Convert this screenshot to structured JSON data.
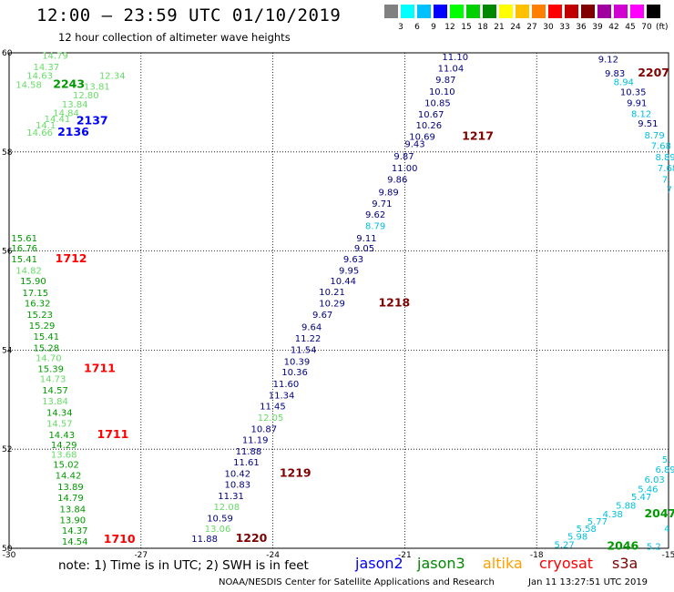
{
  "header": {
    "title": "12:00 — 23:59 UTC 01/10/2019",
    "subtitle": "12 hour collection of altimeter wave heights"
  },
  "legend": {
    "colors": [
      "#808080",
      "#00ffff",
      "#00c0ff",
      "#0000ff",
      "#00ff00",
      "#00d000",
      "#008800",
      "#ffff00",
      "#ffc000",
      "#ff8000",
      "#ff0000",
      "#c00000",
      "#800000",
      "#a000a0",
      "#d000d0",
      "#ff00ff",
      "#000000"
    ],
    "labels": [
      "3",
      "6",
      "9",
      "12",
      "15",
      "18",
      "21",
      "24",
      "27",
      "30",
      "33",
      "36",
      "39",
      "42",
      "45",
      "70"
    ],
    "unit": "(ft)"
  },
  "axes": {
    "x_ticks": [
      "-30",
      "-27",
      "-24",
      "-21",
      "-18",
      "-15"
    ],
    "y_ticks": [
      "60",
      "58",
      "56",
      "54",
      "52",
      "50"
    ]
  },
  "notes": {
    "text": "note: 1) Time is in UTC; 2) SWH is in feet",
    "credit": "NOAA/NESDIS Center for Satellite Applications and Research",
    "timestamp": "Jan 11 13:27:51 UTC 2019"
  },
  "satellites": [
    {
      "name": "jason2",
      "color": "#0000ff"
    },
    {
      "name": "jason3",
      "color": "#008800"
    },
    {
      "name": "altika",
      "color": "#ffa000"
    },
    {
      "name": "cryosat",
      "color": "#ff0000"
    },
    {
      "name": "s3a",
      "color": "#800000"
    }
  ],
  "colors": {
    "l": "#66dd66",
    "g": "#009900",
    "b": "#0000ff",
    "c": "#00c0e0",
    "n": "#000080",
    "r": "#ff0000",
    "m": "#800000"
  },
  "labels": [
    {
      "lon": -29.25,
      "lat": 59.95,
      "t": "14.79",
      "c": "l"
    },
    {
      "lon": -29.45,
      "lat": 59.72,
      "t": "14.37",
      "c": "l"
    },
    {
      "lon": -29.6,
      "lat": 59.55,
      "t": "14.63",
      "c": "l"
    },
    {
      "lon": -29.85,
      "lat": 59.37,
      "t": "14.58",
      "c": "l"
    },
    {
      "lon": -29.0,
      "lat": 59.37,
      "t": "2243",
      "c": "g",
      "big": true
    },
    {
      "lon": -27.95,
      "lat": 59.55,
      "t": "12.34",
      "c": "l"
    },
    {
      "lon": -28.3,
      "lat": 59.33,
      "t": "13.81",
      "c": "l"
    },
    {
      "lon": -28.55,
      "lat": 59.15,
      "t": "12.80",
      "c": "l"
    },
    {
      "lon": -28.8,
      "lat": 58.97,
      "t": "13.84",
      "c": "l"
    },
    {
      "lon": -29.0,
      "lat": 58.8,
      "t": "14.84",
      "c": "l"
    },
    {
      "lon": -29.2,
      "lat": 58.68,
      "t": "14.41",
      "c": "l"
    },
    {
      "lon": -28.47,
      "lat": 58.63,
      "t": "2137",
      "c": "b",
      "big": true
    },
    {
      "lon": -29.4,
      "lat": 58.55,
      "t": "14.1",
      "c": "l"
    },
    {
      "lon": -29.6,
      "lat": 58.4,
      "t": "14.66",
      "c": "l"
    },
    {
      "lon": -28.9,
      "lat": 58.4,
      "t": "2136",
      "c": "b",
      "big": true
    },
    {
      "lon": -20.15,
      "lat": 59.93,
      "t": "11.10",
      "c": "n"
    },
    {
      "lon": -20.25,
      "lat": 59.7,
      "t": "11.04",
      "c": "n"
    },
    {
      "lon": -20.3,
      "lat": 59.47,
      "t": "9.87",
      "c": "n"
    },
    {
      "lon": -20.45,
      "lat": 59.23,
      "t": "10.10",
      "c": "n"
    },
    {
      "lon": -20.55,
      "lat": 59.0,
      "t": "10.85",
      "c": "n"
    },
    {
      "lon": -20.7,
      "lat": 58.77,
      "t": "10.67",
      "c": "n"
    },
    {
      "lon": -20.75,
      "lat": 58.55,
      "t": "10.26",
      "c": "n"
    },
    {
      "lon": -20.9,
      "lat": 58.32,
      "t": "10.69",
      "c": "n"
    },
    {
      "lon": -19.7,
      "lat": 58.32,
      "t": "1217",
      "c": "m",
      "big": true
    },
    {
      "lon": -21.0,
      "lat": 58.17,
      "t": "9.43",
      "c": "n"
    },
    {
      "lon": -21.25,
      "lat": 57.92,
      "t": "9.87",
      "c": "n"
    },
    {
      "lon": -21.3,
      "lat": 57.68,
      "t": "11.00",
      "c": "n"
    },
    {
      "lon": -21.4,
      "lat": 57.45,
      "t": "9.86",
      "c": "n"
    },
    {
      "lon": -21.6,
      "lat": 57.2,
      "t": "9.89",
      "c": "n"
    },
    {
      "lon": -21.75,
      "lat": 56.97,
      "t": "9.71",
      "c": "n"
    },
    {
      "lon": -21.9,
      "lat": 56.75,
      "t": "9.62",
      "c": "n"
    },
    {
      "lon": -21.9,
      "lat": 56.52,
      "t": "8.79",
      "c": "c"
    },
    {
      "lon": -22.1,
      "lat": 56.27,
      "t": "9.11",
      "c": "n"
    },
    {
      "lon": -22.15,
      "lat": 56.07,
      "t": "9.05",
      "c": "n"
    },
    {
      "lon": -22.4,
      "lat": 55.85,
      "t": "9.63",
      "c": "n"
    },
    {
      "lon": -22.5,
      "lat": 55.62,
      "t": "9.95",
      "c": "n"
    },
    {
      "lon": -22.7,
      "lat": 55.4,
      "t": "10.44",
      "c": "n"
    },
    {
      "lon": -22.95,
      "lat": 55.18,
      "t": "10.21",
      "c": "n"
    },
    {
      "lon": -22.95,
      "lat": 54.95,
      "t": "10.29",
      "c": "n"
    },
    {
      "lon": -21.6,
      "lat": 54.95,
      "t": "1218",
      "c": "m",
      "big": true
    },
    {
      "lon": -23.1,
      "lat": 54.72,
      "t": "9.67",
      "c": "n"
    },
    {
      "lon": -23.35,
      "lat": 54.48,
      "t": "9.64",
      "c": "n"
    },
    {
      "lon": -23.5,
      "lat": 54.25,
      "t": "11.22",
      "c": "n"
    },
    {
      "lon": -23.6,
      "lat": 54.02,
      "t": "11.54",
      "c": "n"
    },
    {
      "lon": -23.75,
      "lat": 53.78,
      "t": "10.39",
      "c": "n"
    },
    {
      "lon": -23.8,
      "lat": 53.57,
      "t": "10.36",
      "c": "n"
    },
    {
      "lon": -24.0,
      "lat": 53.33,
      "t": "11.60",
      "c": "n"
    },
    {
      "lon": -24.1,
      "lat": 53.1,
      "t": "11.34",
      "c": "n"
    },
    {
      "lon": -24.3,
      "lat": 52.88,
      "t": "11.45",
      "c": "n"
    },
    {
      "lon": -24.35,
      "lat": 52.65,
      "t": "12.05",
      "c": "l"
    },
    {
      "lon": -24.5,
      "lat": 52.42,
      "t": "10.87",
      "c": "n"
    },
    {
      "lon": -24.7,
      "lat": 52.2,
      "t": "11.19",
      "c": "n"
    },
    {
      "lon": -24.85,
      "lat": 51.97,
      "t": "11.88",
      "c": "n"
    },
    {
      "lon": -24.9,
      "lat": 51.75,
      "t": "11.61",
      "c": "n"
    },
    {
      "lon": -25.1,
      "lat": 51.52,
      "t": "10.42",
      "c": "n"
    },
    {
      "lon": -23.85,
      "lat": 51.52,
      "t": "1219",
      "c": "m",
      "big": true
    },
    {
      "lon": -25.1,
      "lat": 51.3,
      "t": "10.83",
      "c": "n"
    },
    {
      "lon": -25.25,
      "lat": 51.07,
      "t": "11.31",
      "c": "n"
    },
    {
      "lon": -25.35,
      "lat": 50.85,
      "t": "12.08",
      "c": "l"
    },
    {
      "lon": -25.5,
      "lat": 50.62,
      "t": "10.59",
      "c": "n"
    },
    {
      "lon": -25.55,
      "lat": 50.4,
      "t": "13.06",
      "c": "l"
    },
    {
      "lon": -25.85,
      "lat": 50.2,
      "t": "11.88",
      "c": "n"
    },
    {
      "lon": -24.85,
      "lat": 50.2,
      "t": "1220",
      "c": "m",
      "big": true
    },
    {
      "lon": -29.95,
      "lat": 56.27,
      "t": "15.61",
      "c": "g"
    },
    {
      "lon": -29.95,
      "lat": 56.07,
      "t": "16.76",
      "c": "g"
    },
    {
      "lon": -29.95,
      "lat": 55.85,
      "t": "15.41",
      "c": "g"
    },
    {
      "lon": -28.95,
      "lat": 55.85,
      "t": "1712",
      "c": "r",
      "big": true
    },
    {
      "lon": -29.85,
      "lat": 55.62,
      "t": "14.82",
      "c": "l"
    },
    {
      "lon": -29.75,
      "lat": 55.4,
      "t": "15.90",
      "c": "g"
    },
    {
      "lon": -29.7,
      "lat": 55.17,
      "t": "17.15",
      "c": "g"
    },
    {
      "lon": -29.65,
      "lat": 54.95,
      "t": "16.32",
      "c": "g"
    },
    {
      "lon": -29.6,
      "lat": 54.72,
      "t": "15.23",
      "c": "g"
    },
    {
      "lon": -29.55,
      "lat": 54.5,
      "t": "15.29",
      "c": "g"
    },
    {
      "lon": -29.45,
      "lat": 54.28,
      "t": "15.41",
      "c": "g"
    },
    {
      "lon": -29.45,
      "lat": 54.05,
      "t": "15.28",
      "c": "g"
    },
    {
      "lon": -29.4,
      "lat": 53.85,
      "t": "14.70",
      "c": "l"
    },
    {
      "lon": -29.35,
      "lat": 53.63,
      "t": "15.39",
      "c": "g"
    },
    {
      "lon": -28.3,
      "lat": 53.63,
      "t": "1711",
      "c": "r",
      "big": true
    },
    {
      "lon": -29.3,
      "lat": 53.43,
      "t": "14.73",
      "c": "l"
    },
    {
      "lon": -29.25,
      "lat": 53.2,
      "t": "14.57",
      "c": "g"
    },
    {
      "lon": -29.25,
      "lat": 52.98,
      "t": "13.84",
      "c": "l"
    },
    {
      "lon": -29.15,
      "lat": 52.75,
      "t": "14.34",
      "c": "g"
    },
    {
      "lon": -29.15,
      "lat": 52.53,
      "t": "14.57",
      "c": "l"
    },
    {
      "lon": -29.1,
      "lat": 52.3,
      "t": "14.43",
      "c": "g"
    },
    {
      "lon": -28.0,
      "lat": 52.3,
      "t": "1711",
      "c": "r",
      "big": true
    },
    {
      "lon": -29.05,
      "lat": 52.1,
      "t": "14.29",
      "c": "g"
    },
    {
      "lon": -29.05,
      "lat": 51.9,
      "t": "13.68",
      "c": "l"
    },
    {
      "lon": -29.0,
      "lat": 51.7,
      "t": "15.02",
      "c": "g"
    },
    {
      "lon": -28.95,
      "lat": 51.48,
      "t": "14.42",
      "c": "g"
    },
    {
      "lon": -28.9,
      "lat": 51.25,
      "t": "13.89",
      "c": "g"
    },
    {
      "lon": -28.9,
      "lat": 51.03,
      "t": "14.79",
      "c": "g"
    },
    {
      "lon": -28.85,
      "lat": 50.8,
      "t": "13.84",
      "c": "g"
    },
    {
      "lon": -28.85,
      "lat": 50.58,
      "t": "13.90",
      "c": "g"
    },
    {
      "lon": -28.8,
      "lat": 50.37,
      "t": "14.37",
      "c": "g"
    },
    {
      "lon": -28.8,
      "lat": 50.15,
      "t": "14.54",
      "c": "g"
    },
    {
      "lon": -27.85,
      "lat": 50.18,
      "t": "1710",
      "c": "r",
      "big": true
    },
    {
      "lon": -16.6,
      "lat": 59.88,
      "t": "9.12",
      "c": "n"
    },
    {
      "lon": -16.45,
      "lat": 59.6,
      "t": "9.83",
      "c": "n"
    },
    {
      "lon": -15.7,
      "lat": 59.6,
      "t": "2207",
      "c": "m",
      "big": true
    },
    {
      "lon": -16.25,
      "lat": 59.42,
      "t": "8.94",
      "c": "c"
    },
    {
      "lon": -16.1,
      "lat": 59.22,
      "t": "10.35",
      "c": "n"
    },
    {
      "lon": -15.95,
      "lat": 59.0,
      "t": "9.91",
      "c": "n"
    },
    {
      "lon": -15.85,
      "lat": 58.78,
      "t": "8.12",
      "c": "c"
    },
    {
      "lon": -15.7,
      "lat": 58.58,
      "t": "9.51",
      "c": "n"
    },
    {
      "lon": -15.55,
      "lat": 58.35,
      "t": "8.79",
      "c": "c"
    },
    {
      "lon": -15.4,
      "lat": 58.13,
      "t": "7.68",
      "c": "c"
    },
    {
      "lon": -15.3,
      "lat": 57.9,
      "t": "8.89",
      "c": "c"
    },
    {
      "lon": -15.25,
      "lat": 57.68,
      "t": "7.68",
      "c": "c"
    },
    {
      "lon": -15.15,
      "lat": 57.45,
      "t": "7.",
      "c": "c"
    },
    {
      "lon": -15.05,
      "lat": 57.25,
      "t": "7",
      "c": "c"
    },
    {
      "lon": -15.15,
      "lat": 51.8,
      "t": "5.",
      "c": "c"
    },
    {
      "lon": -15.3,
      "lat": 51.6,
      "t": "6.89",
      "c": "c"
    },
    {
      "lon": -15.55,
      "lat": 51.4,
      "t": "6.03",
      "c": "c"
    },
    {
      "lon": -15.7,
      "lat": 51.2,
      "t": "5.46",
      "c": "c"
    },
    {
      "lon": -15.85,
      "lat": 51.05,
      "t": "5.47",
      "c": "c"
    },
    {
      "lon": -16.2,
      "lat": 50.87,
      "t": "5.88",
      "c": "c"
    },
    {
      "lon": -16.5,
      "lat": 50.7,
      "t": "4.38",
      "c": "c"
    },
    {
      "lon": -15.55,
      "lat": 50.7,
      "t": "2047",
      "c": "g",
      "big": true
    },
    {
      "lon": -16.85,
      "lat": 50.55,
      "t": "5.77",
      "c": "c"
    },
    {
      "lon": -17.1,
      "lat": 50.4,
      "t": "5.58",
      "c": "c"
    },
    {
      "lon": -17.3,
      "lat": 50.25,
      "t": "5.98",
      "c": "c"
    },
    {
      "lon": -17.6,
      "lat": 50.08,
      "t": "5.27",
      "c": "c"
    },
    {
      "lon": -16.4,
      "lat": 50.05,
      "t": "2046",
      "c": "g",
      "big": true
    },
    {
      "lon": -15.5,
      "lat": 50.05,
      "t": "5.2",
      "c": "c"
    },
    {
      "lon": -15.1,
      "lat": 50.4,
      "t": "4",
      "c": "c"
    }
  ]
}
